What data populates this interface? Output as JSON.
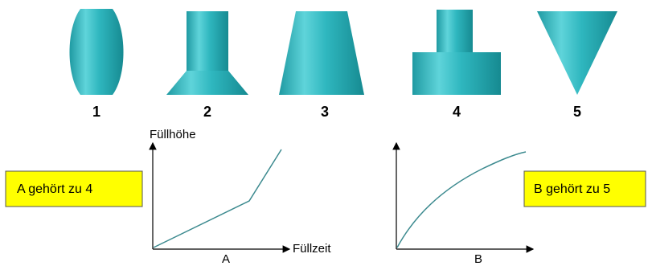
{
  "vessels": [
    {
      "label": "1"
    },
    {
      "label": "2"
    },
    {
      "label": "3"
    },
    {
      "label": "4"
    },
    {
      "label": "5"
    }
  ],
  "graph_a": {
    "y_axis_label": "Füllhöhe",
    "x_axis_label": "Füllzeit",
    "name": "A",
    "answer": "A gehört zu 4"
  },
  "graph_b": {
    "name": "B",
    "answer": "B gehört zu 5"
  }
}
